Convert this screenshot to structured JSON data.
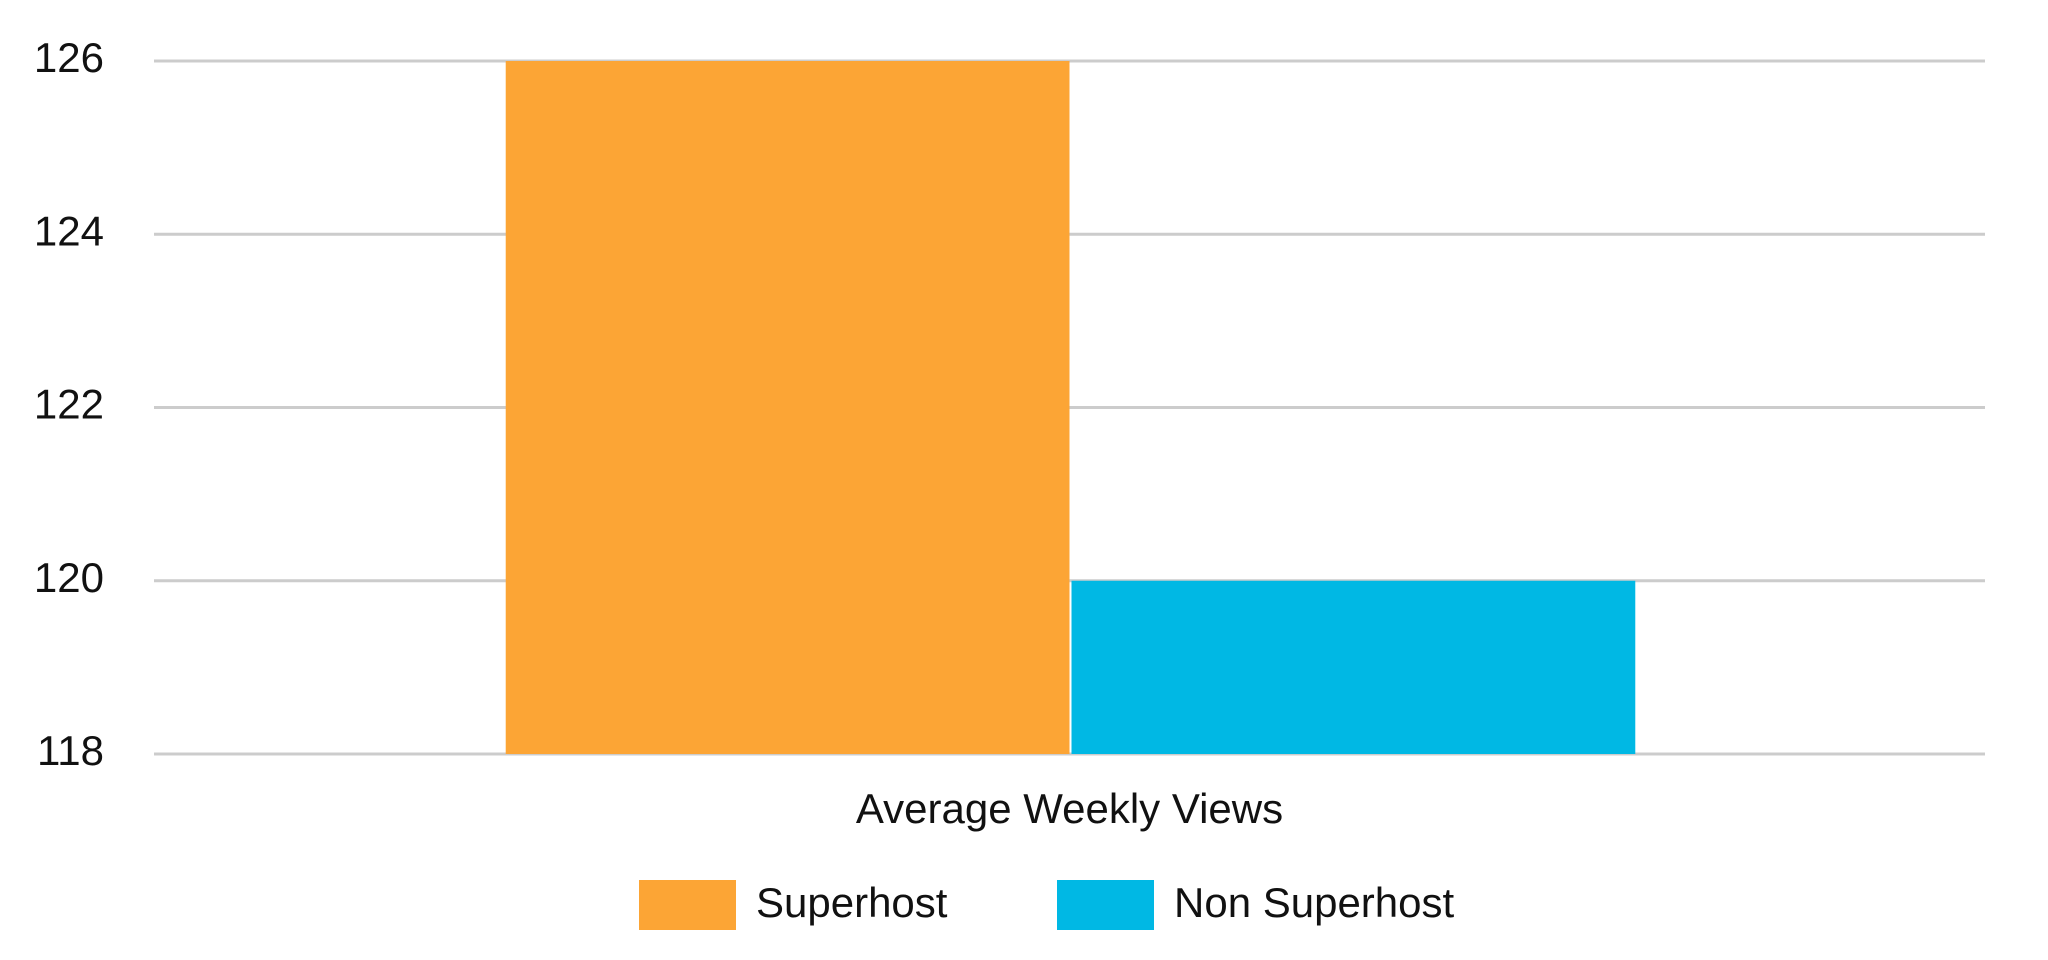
{
  "chart_data": {
    "type": "bar",
    "categories": [
      "Average Weekly Views"
    ],
    "series": [
      {
        "name": "Superhost",
        "color": "#fca535",
        "values": [
          126
        ]
      },
      {
        "name": "Non Superhost",
        "color": "#00b8e4",
        "values": [
          120
        ]
      }
    ],
    "ylim": [
      118,
      126
    ],
    "yticks": [
      118,
      120,
      122,
      124,
      126
    ],
    "grid": true,
    "legend": "bottom"
  }
}
